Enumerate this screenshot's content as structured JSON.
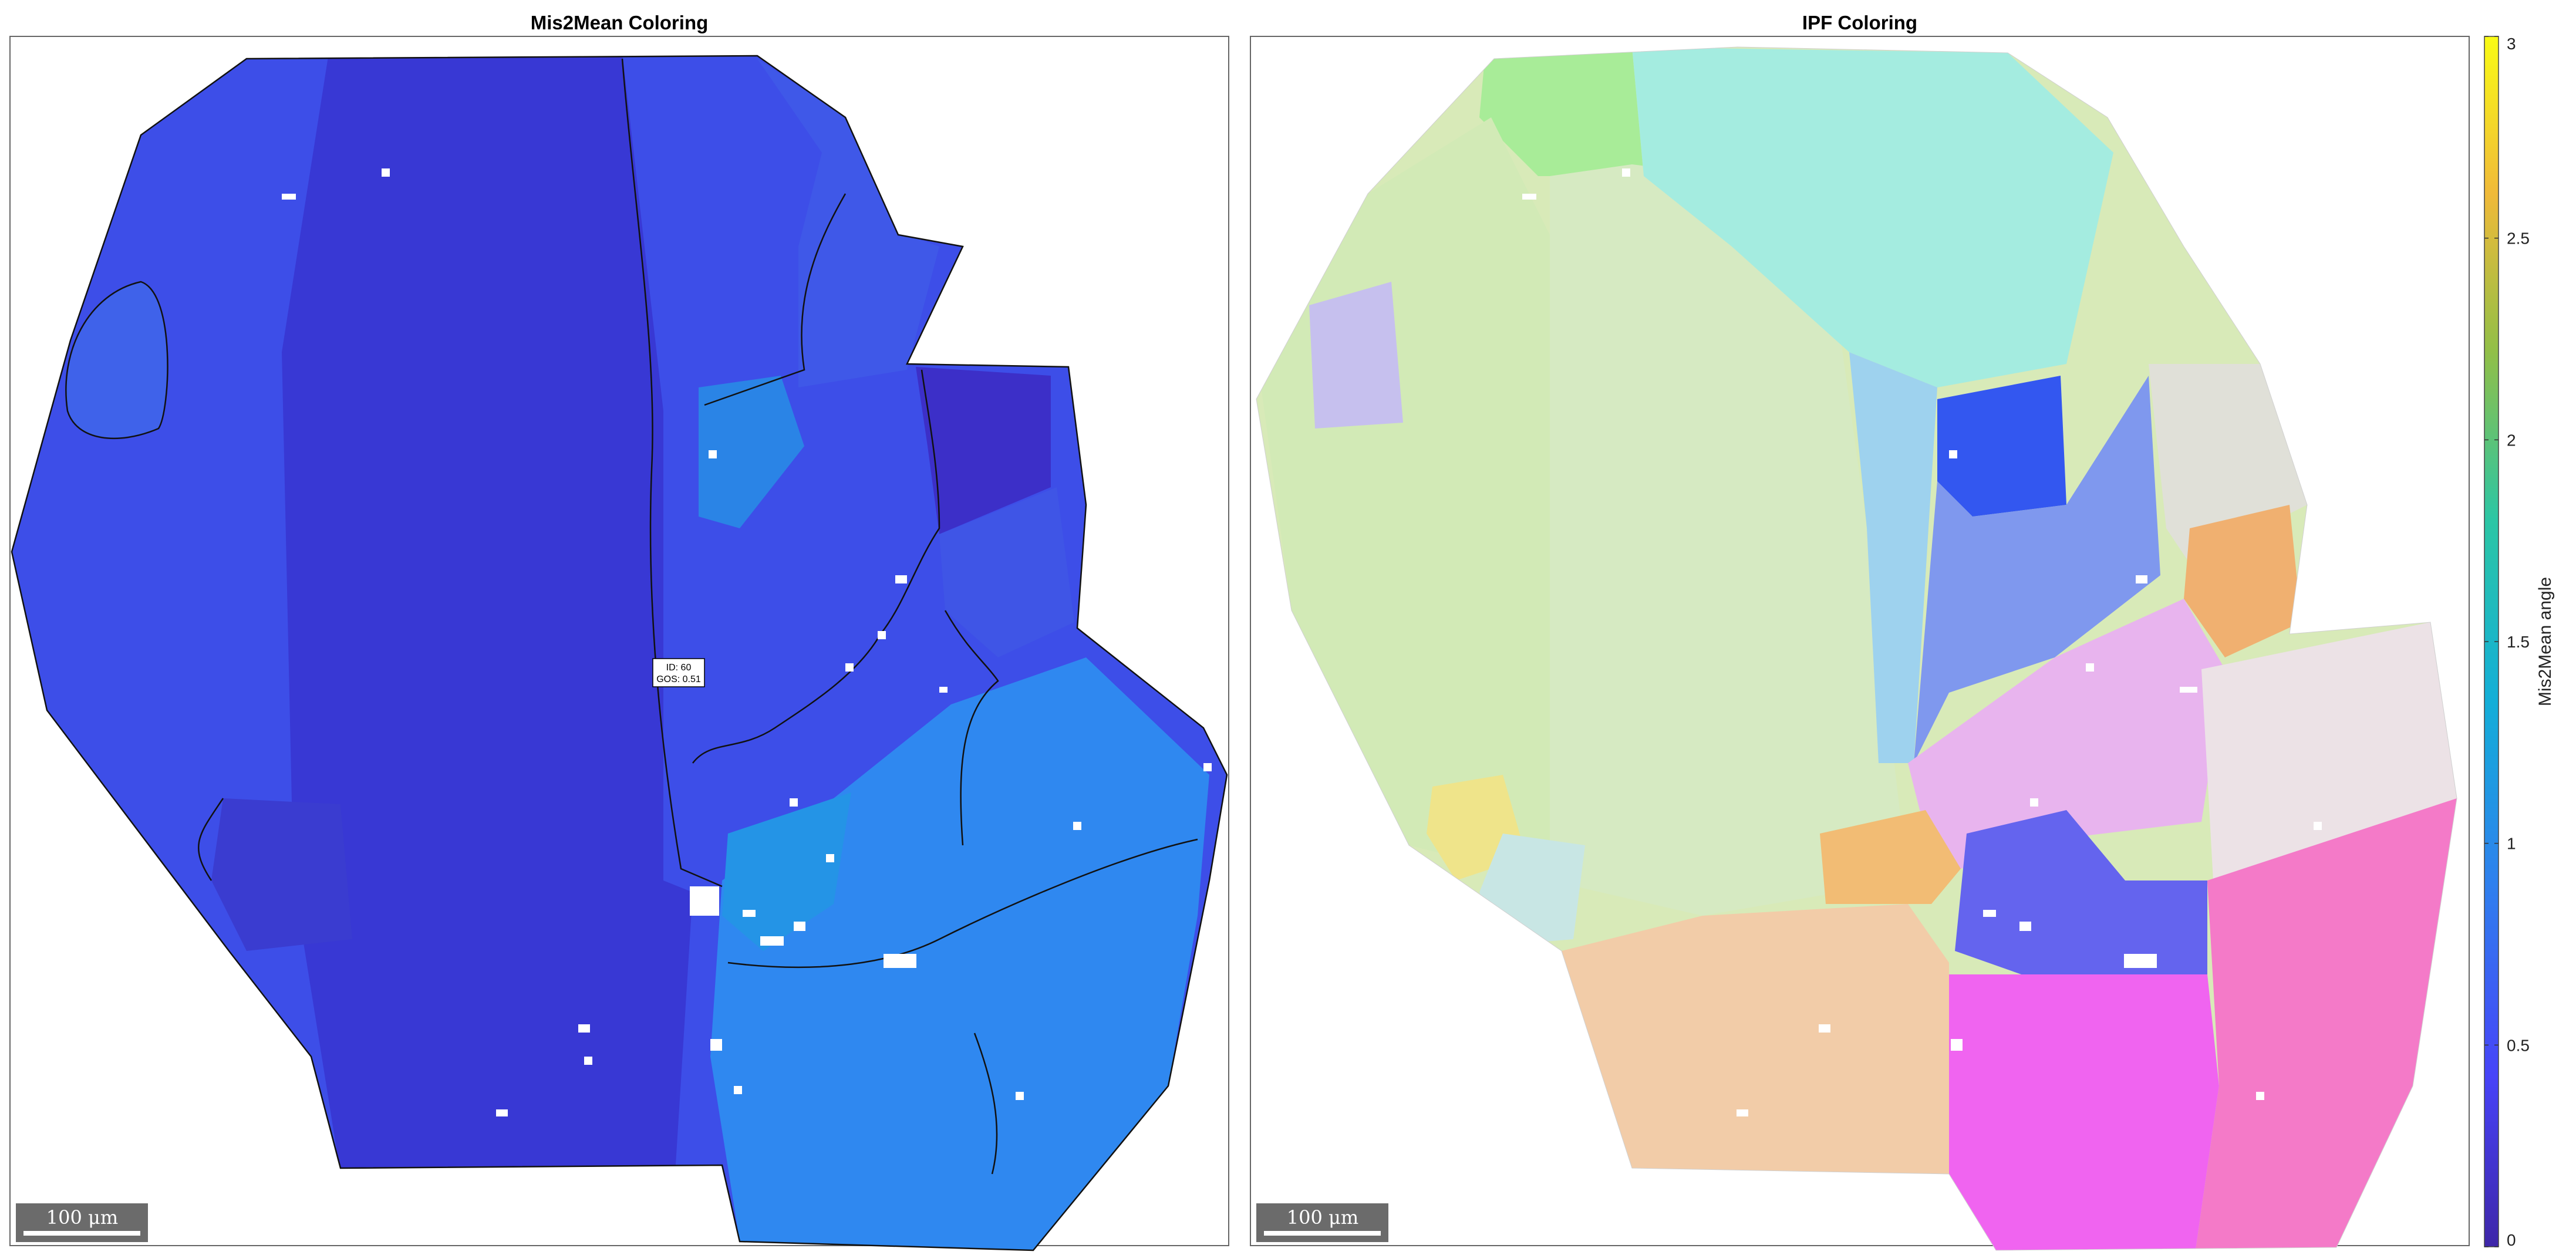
{
  "panels": [
    {
      "title": "Mis2Mean Coloring",
      "scalebar_label": "100 μm"
    },
    {
      "title": "IPF Coloring",
      "scalebar_label": "100 μm"
    }
  ],
  "annotation": {
    "line1": "ID: 60",
    "line2": "GOS: 0.51"
  },
  "colorbar": {
    "label": "Mis2Mean angle",
    "min": 0,
    "max": 3,
    "ticks": [
      "0",
      "0.5",
      "1",
      "1.5",
      "2",
      "2.5",
      "3"
    ],
    "colormap": [
      "#3e26a8",
      "#4743f8",
      "#2f80ee",
      "#13aed8",
      "#2bc6a5",
      "#92bf47",
      "#f0ba39",
      "#f9fb15"
    ]
  },
  "colors": {
    "misorientation_base": "#3d4ee8",
    "misorientation_dark": "#3838d4",
    "misorientation_light": "#2f88f0",
    "ipf_green": "#c4e8b0",
    "ipf_cyan": "#98ede0",
    "ipf_blue": "#3357f0",
    "ipf_magenta": "#f064f0",
    "ipf_orange": "#f0b070",
    "ipf_white": "#e8e2e6",
    "ipf_lavender": "#c6c0ee"
  }
}
